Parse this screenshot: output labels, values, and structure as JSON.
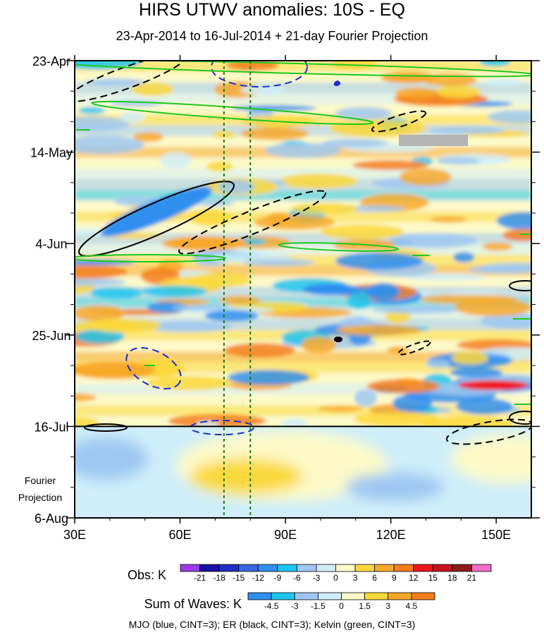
{
  "chart_data": {
    "type": "heatmap",
    "title": "HIRS UTWV anomalies: 10S - EQ",
    "subtitle": "23-Apr-2014 to 16-Jul-2014 + 21-day Fourier Projection",
    "x_ticks": [
      {
        "value": 30,
        "label": "30E"
      },
      {
        "value": 60,
        "label": "60E"
      },
      {
        "value": 90,
        "label": "90E"
      },
      {
        "value": 120,
        "label": "120E"
      },
      {
        "value": 150,
        "label": "150E"
      }
    ],
    "x_range": [
      30,
      160
    ],
    "y_range": [
      "2014-04-23",
      "2014-08-06"
    ],
    "y_ticks": [
      {
        "value": "2014-04-23",
        "label": "23-Apr"
      },
      {
        "value": "2014-05-14",
        "label": "14-May"
      },
      {
        "value": "2014-06-04",
        "label": "4-Jun"
      },
      {
        "value": "2014-06-25",
        "label": "25-Jun"
      },
      {
        "value": "2014-07-16",
        "label": "16-Jul"
      },
      {
        "value": "2014-08-06",
        "label": "6-Aug"
      }
    ],
    "projection_label": [
      "Fourier",
      "Projection"
    ],
    "observation_end": "2014-07-16",
    "reference_longitudes": [
      72.5,
      80
    ],
    "obs_legend": {
      "label": "Obs: K",
      "levels": [
        "-21",
        "-18",
        "-15",
        "-12",
        "-9",
        "-6",
        "-3",
        "0",
        "3",
        "6",
        "9",
        "12",
        "15",
        "18",
        "21"
      ],
      "colors": [
        "#9b3be6",
        "#1a0fa6",
        "#2030c8",
        "#3a66e0",
        "#2f8ff0",
        "#1ec4f0",
        "#9ec8f2",
        "#cfeefa",
        "#fdfac8",
        "#fbd83a",
        "#f8a92a",
        "#f57e1c",
        "#f0161e",
        "#c41420",
        "#8a1c1c",
        "#f06ec6"
      ]
    },
    "waves_legend": {
      "label": "Sum of Waves: K",
      "levels": [
        "-4.5",
        "-3",
        "-1.5",
        "0",
        "1.5",
        "3",
        "4.5"
      ],
      "colors": [
        "#2f8ff0",
        "#1ec4f0",
        "#9ec8f2",
        "#cfeefa",
        "#fdfac8",
        "#fbd83a",
        "#f8a92a",
        "#f57e1c"
      ]
    },
    "contour_note": "MJO (blue, CINT=3); ER (black, CINT=3); Kelvin (green, CINT=3)",
    "wave_colors": {
      "MJO": "#1a2fd0",
      "ER": "#000000",
      "Kelvin": "#20c820"
    }
  }
}
